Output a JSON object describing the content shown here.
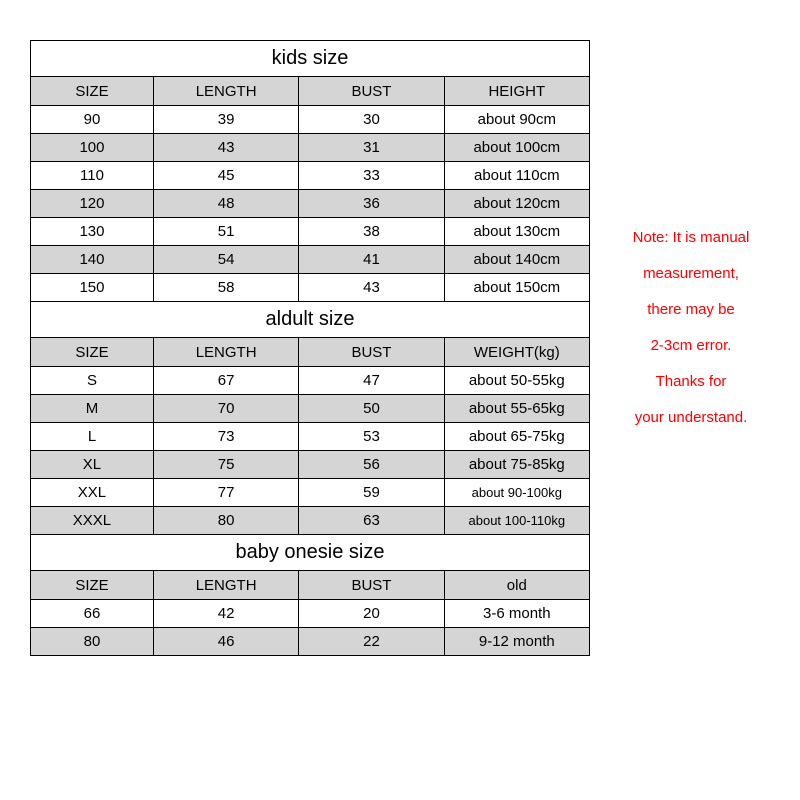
{
  "kids": {
    "title": "kids size",
    "columns": [
      "SIZE",
      "LENGTH",
      "BUST",
      "HEIGHT"
    ],
    "rows": [
      [
        "90",
        "39",
        "30",
        "about 90cm"
      ],
      [
        "100",
        "43",
        "31",
        "about 100cm"
      ],
      [
        "110",
        "45",
        "33",
        "about 110cm"
      ],
      [
        "120",
        "48",
        "36",
        "about 120cm"
      ],
      [
        "130",
        "51",
        "38",
        "about 130cm"
      ],
      [
        "140",
        "54",
        "41",
        "about 140cm"
      ],
      [
        "150",
        "58",
        "43",
        "about 150cm"
      ]
    ],
    "alt_rows": [
      false,
      true,
      false,
      true,
      false,
      true,
      false
    ]
  },
  "adult": {
    "title": "aldult size",
    "columns": [
      "SIZE",
      "LENGTH",
      "BUST",
      "WEIGHT(kg)"
    ],
    "rows": [
      [
        "S",
        "67",
        "47",
        "about 50-55kg"
      ],
      [
        "M",
        "70",
        "50",
        "about 55-65kg"
      ],
      [
        "L",
        "73",
        "53",
        "about 65-75kg"
      ],
      [
        "XL",
        "75",
        "56",
        "about 75-85kg"
      ],
      [
        "XXL",
        "77",
        "59",
        "about 90-100kg"
      ],
      [
        "XXXL",
        "80",
        "63",
        "about 100-110kg"
      ]
    ],
    "alt_rows": [
      false,
      true,
      false,
      true,
      false,
      true
    ],
    "small_last_col_rows": [
      4,
      5
    ]
  },
  "baby": {
    "title": "baby onesie size",
    "columns": [
      "SIZE",
      "LENGTH",
      "BUST",
      "old"
    ],
    "rows": [
      [
        "66",
        "42",
        "20",
        "3-6 month"
      ],
      [
        "80",
        "46",
        "22",
        "9-12 month"
      ]
    ],
    "alt_rows": [
      false,
      true
    ]
  },
  "note": {
    "lines": [
      "Note: It is manual",
      "measurement,",
      "there may be",
      "2-3cm error.",
      "Thanks for",
      "your understand."
    ]
  },
  "style": {
    "border_color": "#000000",
    "header_bg": "#d5d5d5",
    "alt_bg": "#d5d5d5",
    "note_color": "#ff0000",
    "page_bg": "#ffffff",
    "title_fontsize": 20,
    "cell_fontsize": 15,
    "small_fontsize": 13,
    "col_widths_pct": [
      22,
      26,
      26,
      26
    ]
  }
}
